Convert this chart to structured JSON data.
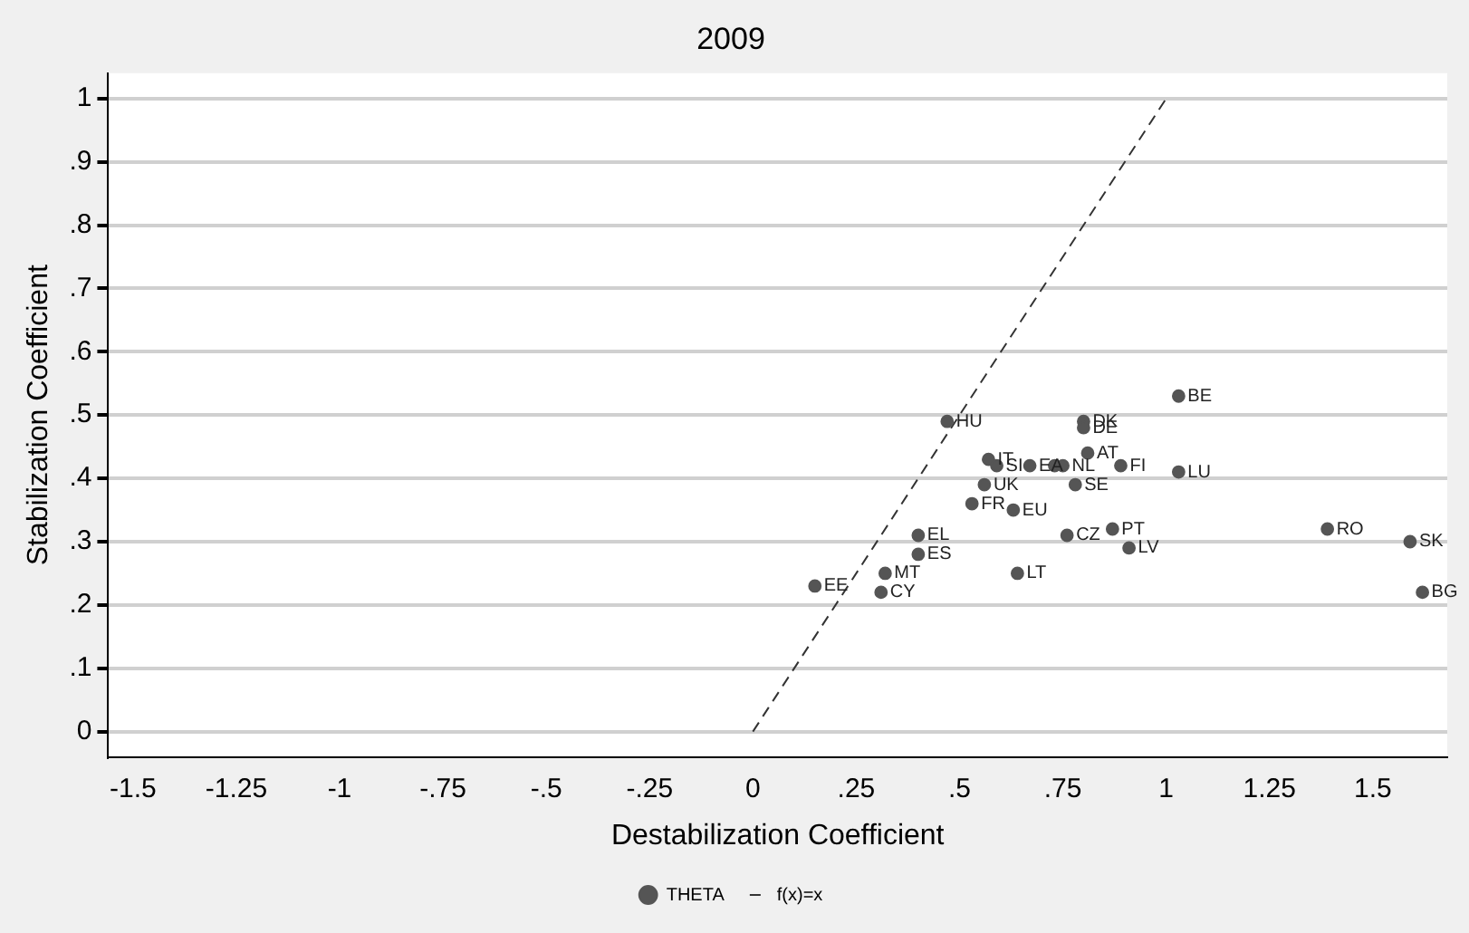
{
  "chart_data": {
    "type": "scatter",
    "title": "2009",
    "xlabel": "Destabilization Coefficient",
    "ylabel": "Stabilization Coefficient",
    "xlim": [
      -1.56,
      1.68
    ],
    "ylim": [
      -0.04,
      1.04
    ],
    "xticks": [
      -1.5,
      -1.25,
      -1,
      {
        "value": -0.75,
        "label": "-.75"
      },
      {
        "value": -0.5,
        "label": "-.5"
      },
      {
        "value": -0.25,
        "label": "-.25"
      },
      0,
      {
        "value": 0.25,
        "label": ".25"
      },
      {
        "value": 0.5,
        "label": ".5"
      },
      {
        "value": 0.75,
        "label": ".75"
      },
      1,
      1.25,
      1.5
    ],
    "yticks": [
      0,
      {
        "value": 0.1,
        "label": ".1"
      },
      {
        "value": 0.2,
        "label": ".2"
      },
      {
        "value": 0.3,
        "label": ".3"
      },
      {
        "value": 0.4,
        "label": ".4"
      },
      {
        "value": 0.5,
        "label": ".5"
      },
      {
        "value": 0.6,
        "label": ".6"
      },
      {
        "value": 0.7,
        "label": ".7"
      },
      {
        "value": 0.8,
        "label": ".8"
      },
      {
        "value": 0.9,
        "label": ".9"
      },
      1
    ],
    "grid": "y",
    "legend": "bottom",
    "marker": "circle",
    "series": [
      {
        "name": "THETA",
        "color": "#555555",
        "x": [
          1.03,
          0.47,
          0.8,
          0.8,
          0.57,
          0.81,
          0.89,
          0.59,
          0.67,
          0.73,
          0.75,
          0.78,
          0.56,
          1.03,
          0.53,
          0.63,
          0.4,
          0.4,
          0.76,
          0.87,
          0.91,
          0.32,
          0.64,
          0.15,
          0.31,
          1.39,
          1.59,
          1.62
        ],
        "values": [
          0.53,
          0.49,
          0.49,
          0.48,
          0.43,
          0.44,
          0.42,
          0.42,
          0.42,
          0.42,
          0.42,
          0.39,
          0.39,
          0.41,
          0.36,
          0.35,
          0.31,
          0.28,
          0.31,
          0.32,
          0.29,
          0.25,
          0.25,
          0.23,
          0.22,
          0.32,
          0.3,
          0.22
        ],
        "value_labels": [
          "BE",
          "HU",
          "DK",
          "DE",
          "IT",
          "AT",
          "FI",
          "SI",
          "EA",
          null,
          "NL",
          "SE",
          "UK",
          "LU",
          "FR",
          "EU",
          "EL",
          "ES",
          "CZ",
          "PT",
          "LV",
          "MT",
          "LT",
          "EE",
          "CY",
          "RO",
          "SK",
          "BG"
        ]
      },
      {
        "type": "line",
        "name": "f(x)=x",
        "color": "#333333",
        "line_style": "dashed",
        "marker": "none",
        "x": [
          0,
          1
        ],
        "values": [
          0,
          1
        ]
      }
    ]
  }
}
